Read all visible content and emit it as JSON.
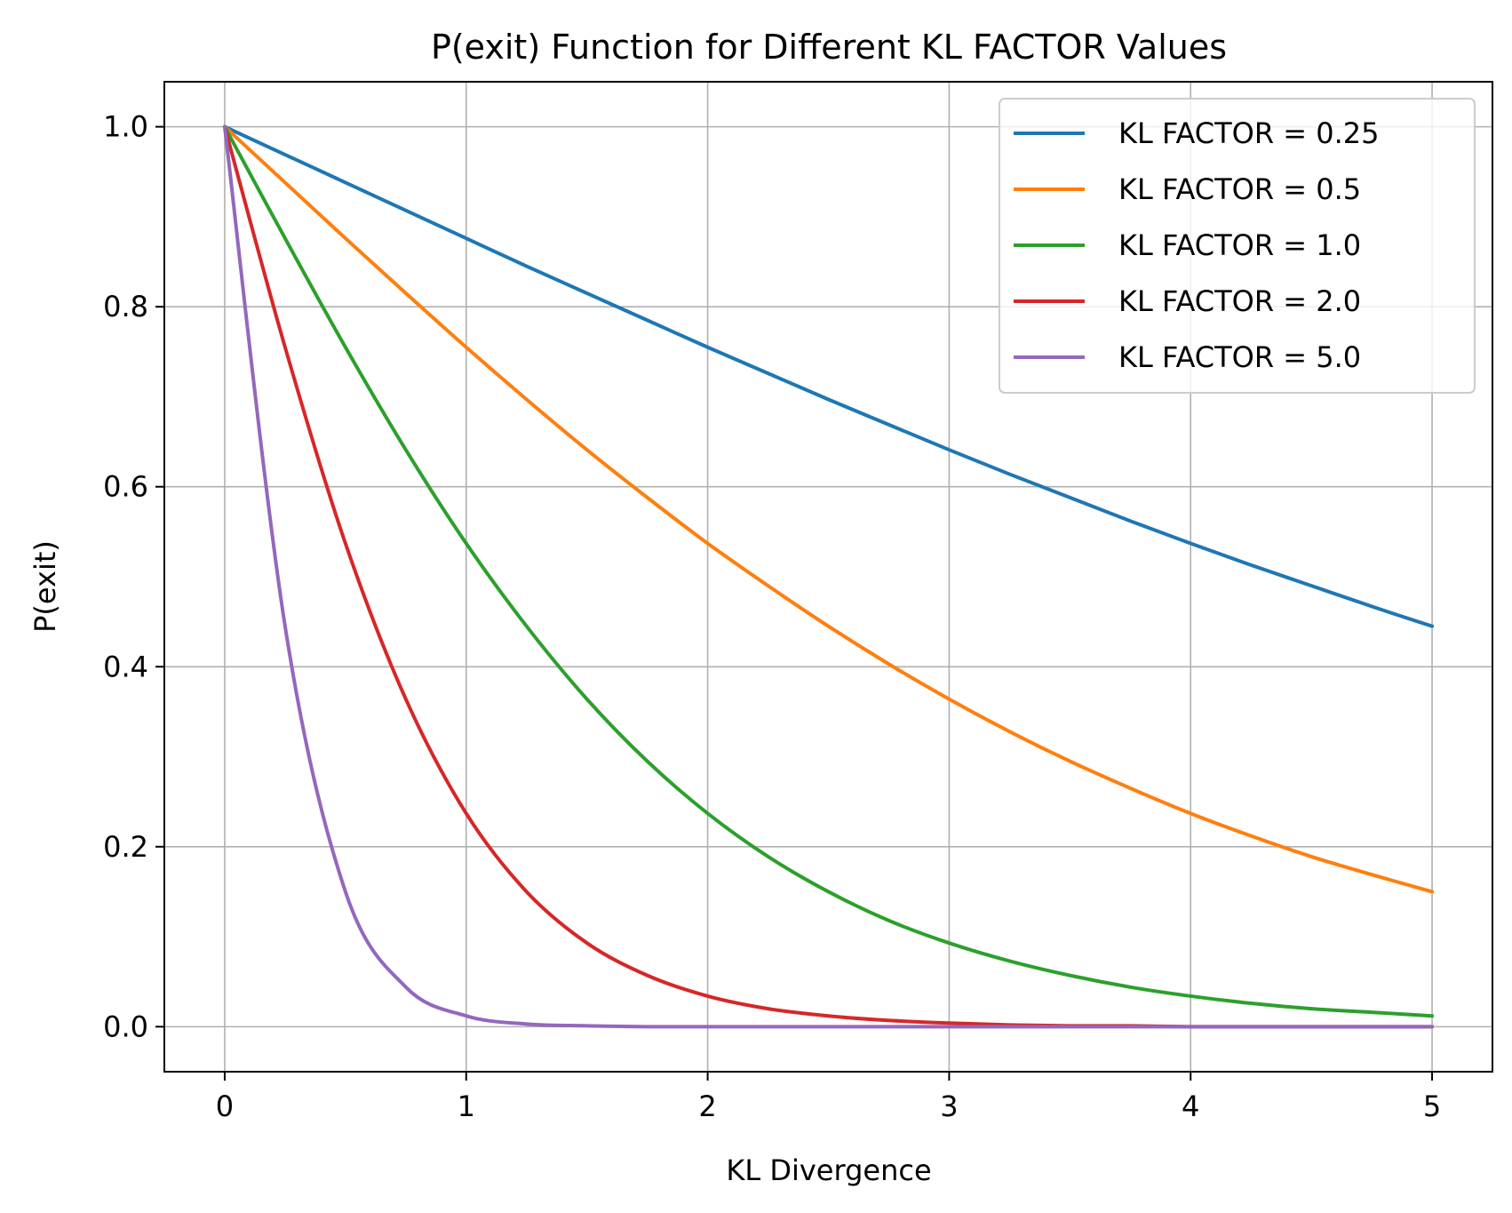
{
  "chart_data": {
    "type": "line",
    "title": "P(exit) Function for Different KL FACTOR Values",
    "xlabel": "KL Divergence",
    "ylabel": "P(exit)",
    "xlim": [
      -0.25,
      5.25
    ],
    "ylim": [
      -0.05,
      1.05
    ],
    "xticks": [
      0,
      1,
      2,
      3,
      4,
      5
    ],
    "xtick_labels": [
      "0",
      "1",
      "2",
      "3",
      "4",
      "5"
    ],
    "yticks": [
      0.0,
      0.2,
      0.4,
      0.6,
      0.8,
      1.0
    ],
    "ytick_labels": [
      "0.0",
      "0.2",
      "0.4",
      "0.6",
      "0.8",
      "1.0"
    ],
    "grid": true,
    "legend_position": "top-right",
    "x": [
      0,
      0.25,
      0.5,
      0.75,
      1.0,
      1.25,
      1.5,
      1.75,
      2.0,
      2.25,
      2.5,
      2.75,
      3.0,
      3.25,
      3.5,
      3.75,
      4.0,
      4.25,
      4.5,
      4.75,
      5.0
    ],
    "series": [
      {
        "name": "KL FACTOR = 0.25",
        "color": "#1f77b4",
        "values": [
          1.0,
          0.969,
          0.938,
          0.907,
          0.876,
          0.845,
          0.815,
          0.785,
          0.755,
          0.726,
          0.697,
          0.669,
          0.641,
          0.614,
          0.588,
          0.562,
          0.537,
          0.513,
          0.49,
          0.467,
          0.445
        ]
      },
      {
        "name": "KL FACTOR = 0.5",
        "color": "#ff7f0e",
        "values": [
          1.0,
          0.938,
          0.876,
          0.815,
          0.755,
          0.697,
          0.641,
          0.588,
          0.537,
          0.49,
          0.445,
          0.403,
          0.364,
          0.328,
          0.295,
          0.265,
          0.237,
          0.212,
          0.189,
          0.169,
          0.15
        ]
      },
      {
        "name": "KL FACTOR = 1.0",
        "color": "#2ca02c",
        "values": [
          1.0,
          0.876,
          0.755,
          0.641,
          0.537,
          0.445,
          0.364,
          0.295,
          0.237,
          0.189,
          0.15,
          0.118,
          0.093,
          0.073,
          0.057,
          0.044,
          0.034,
          0.026,
          0.02,
          0.016,
          0.012
        ]
      },
      {
        "name": "KL FACTOR = 2.0",
        "color": "#d62728",
        "values": [
          1.0,
          0.755,
          0.537,
          0.364,
          0.237,
          0.15,
          0.093,
          0.057,
          0.034,
          0.02,
          0.012,
          0.007,
          0.004,
          0.002,
          0.001,
          0.001,
          0.0,
          0.0,
          0.0,
          0.0,
          0.0
        ]
      },
      {
        "name": "KL FACTOR = 5.0",
        "color": "#9467bd",
        "values": [
          1.0,
          0.445,
          0.15,
          0.044,
          0.012,
          0.003,
          0.001,
          0.0,
          0.0,
          0.0,
          0.0,
          0.0,
          0.0,
          0.0,
          0.0,
          0.0,
          0.0,
          0.0,
          0.0,
          0.0,
          0.0
        ]
      }
    ]
  }
}
